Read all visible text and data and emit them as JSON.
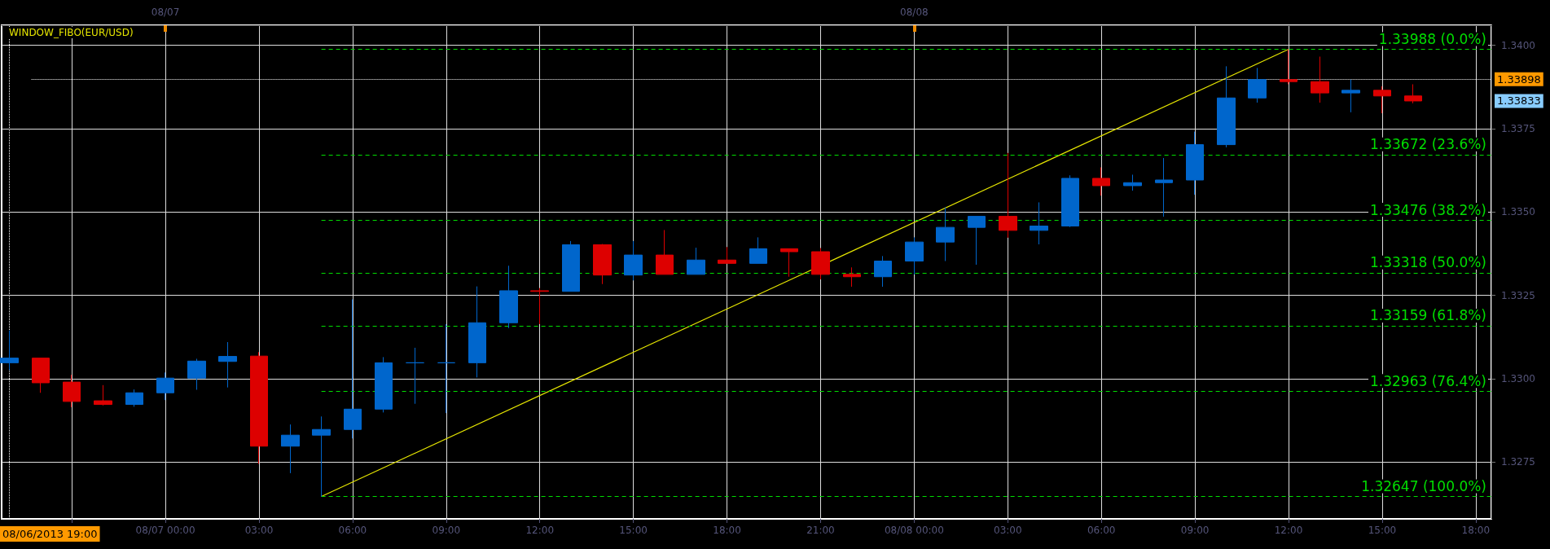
{
  "chart_data": {
    "type": "candlestick",
    "title": "WINDOW_FIBO(EUR/USD)",
    "x": [
      "2013-08-06T19:00",
      "2013-08-06T20:00",
      "2013-08-06T21:00",
      "2013-08-06T22:00",
      "2013-08-06T23:00",
      "2013-08-07T00:00",
      "2013-08-07T01:00",
      "2013-08-07T02:00",
      "2013-08-07T03:00",
      "2013-08-07T04:00",
      "2013-08-07T05:00",
      "2013-08-07T06:00",
      "2013-08-07T07:00",
      "2013-08-07T08:00",
      "2013-08-07T09:00",
      "2013-08-07T10:00",
      "2013-08-07T11:00",
      "2013-08-07T12:00",
      "2013-08-07T13:00",
      "2013-08-07T14:00",
      "2013-08-07T15:00",
      "2013-08-07T16:00",
      "2013-08-07T17:00",
      "2013-08-07T18:00",
      "2013-08-07T19:00",
      "2013-08-07T20:00",
      "2013-08-07T21:00",
      "2013-08-07T22:00",
      "2013-08-07T23:00",
      "2013-08-08T00:00",
      "2013-08-08T01:00",
      "2013-08-08T02:00",
      "2013-08-08T03:00",
      "2013-08-08T04:00",
      "2013-08-08T05:00",
      "2013-08-08T06:00",
      "2013-08-08T07:00",
      "2013-08-08T08:00",
      "2013-08-08T09:00",
      "2013-08-08T10:00",
      "2013-08-08T11:00",
      "2013-08-08T12:00",
      "2013-08-08T13:00",
      "2013-08-08T14:00",
      "2013-08-08T15:00",
      "2013-08-08T16:00"
    ],
    "ohlc": [
      [
        1.33048,
        1.33145,
        1.33026,
        1.33062
      ],
      [
        1.33062,
        1.33062,
        1.32958,
        1.32988
      ],
      [
        1.3299,
        1.33012,
        1.32915,
        1.32932
      ],
      [
        1.32934,
        1.32981,
        1.3292,
        1.32923
      ],
      [
        1.32923,
        1.32968,
        1.32916,
        1.32958
      ],
      [
        1.32958,
        1.33019,
        1.32936,
        1.33002
      ],
      [
        1.33002,
        1.3306,
        1.32967,
        1.33053
      ],
      [
        1.33052,
        1.3311,
        1.32974,
        1.33067
      ],
      [
        1.33068,
        1.3308,
        1.32745,
        1.32798
      ],
      [
        1.32798,
        1.32863,
        1.32717,
        1.32831
      ],
      [
        1.32831,
        1.32887,
        1.32647,
        1.32848
      ],
      [
        1.32848,
        1.33238,
        1.32821,
        1.32909
      ],
      [
        1.32909,
        1.33065,
        1.32899,
        1.33048
      ],
      [
        1.33048,
        1.33093,
        1.32925,
        1.33048
      ],
      [
        1.33048,
        1.33164,
        1.32897,
        1.33048
      ],
      [
        1.33048,
        1.33277,
        1.33004,
        1.33168
      ],
      [
        1.33168,
        1.33339,
        1.33152,
        1.33264
      ],
      [
        1.33264,
        1.33272,
        1.33164,
        1.33262
      ],
      [
        1.33262,
        1.33413,
        1.33262,
        1.33402
      ],
      [
        1.33402,
        1.33404,
        1.33284,
        1.33311
      ],
      [
        1.33311,
        1.33413,
        1.33295,
        1.33371
      ],
      [
        1.33371,
        1.33446,
        1.33313,
        1.33313
      ],
      [
        1.33313,
        1.33393,
        1.33313,
        1.33356
      ],
      [
        1.33356,
        1.33395,
        1.33346,
        1.33346
      ],
      [
        1.33346,
        1.33424,
        1.33346,
        1.3339
      ],
      [
        1.3339,
        1.3339,
        1.33306,
        1.33381
      ],
      [
        1.33381,
        1.33392,
        1.33298,
        1.33313
      ],
      [
        1.33313,
        1.33334,
        1.33276,
        1.33306
      ],
      [
        1.33306,
        1.33368,
        1.33276,
        1.33353
      ],
      [
        1.33353,
        1.33424,
        1.33313,
        1.3341
      ],
      [
        1.3341,
        1.33514,
        1.33353,
        1.33454
      ],
      [
        1.33454,
        1.33487,
        1.33342,
        1.33487
      ],
      [
        1.33487,
        1.33677,
        1.33423,
        1.33445
      ],
      [
        1.33445,
        1.33529,
        1.33403,
        1.33458
      ],
      [
        1.33458,
        1.3361,
        1.33455,
        1.33601
      ],
      [
        1.33601,
        1.33634,
        1.33549,
        1.33579
      ],
      [
        1.33579,
        1.33612,
        1.33564,
        1.33588
      ],
      [
        1.33588,
        1.33662,
        1.33486,
        1.33596
      ],
      [
        1.33596,
        1.33741,
        1.33552,
        1.33702
      ],
      [
        1.33702,
        1.33937,
        1.33694,
        1.33842
      ],
      [
        1.33842,
        1.33932,
        1.33828,
        1.33897
      ],
      [
        1.33897,
        1.33988,
        1.33883,
        1.33891
      ],
      [
        1.33891,
        1.33966,
        1.33828,
        1.33857
      ],
      [
        1.33857,
        1.33897,
        1.33799,
        1.33865
      ],
      [
        1.33865,
        1.33877,
        1.33796,
        1.33848
      ],
      [
        1.33848,
        1.33883,
        1.33826,
        1.33833
      ]
    ],
    "colors": [
      "#0066cc",
      "#dd0000",
      "#dd0000",
      "#dd0000",
      "#0066cc",
      "#0066cc",
      "#0066cc",
      "#0066cc",
      "#dd0000",
      "#0066cc",
      "#0066cc",
      "#0066cc",
      "#0066cc",
      "#0066cc",
      "#0066cc",
      "#0066cc",
      "#0066cc",
      "#dd0000",
      "#0066cc",
      "#dd0000",
      "#0066cc",
      "#dd0000",
      "#0066cc",
      "#dd0000",
      "#0066cc",
      "#dd0000",
      "#dd0000",
      "#dd0000",
      "#0066cc",
      "#0066cc",
      "#0066cc",
      "#0066cc",
      "#dd0000",
      "#0066cc",
      "#0066cc",
      "#dd0000",
      "#0066cc",
      "#0066cc",
      "#0066cc",
      "#0066cc",
      "#0066cc",
      "#dd0000",
      "#dd0000",
      "#0066cc",
      "#dd0000",
      "#dd0000"
    ],
    "series": [
      {
        "type": "line",
        "color": "#e6e600",
        "x": [
          "2013-08-07T05:00",
          "2013-08-08T12:00"
        ],
        "values": [
          1.32647,
          1.33988
        ]
      }
    ],
    "xlim": [
      "2013-08-06T18:45",
      "2013-08-08T18:30"
    ],
    "xticks": [
      {
        "value": "2013-08-06T21:00",
        "label": null
      },
      {
        "value": "2013-08-07T00:00",
        "label": "08/07 00:00"
      },
      {
        "value": "2013-08-07T03:00",
        "label": "03:00"
      },
      {
        "value": "2013-08-07T06:00",
        "label": "06:00"
      },
      {
        "value": "2013-08-07T09:00",
        "label": "09:00"
      },
      {
        "value": "2013-08-07T12:00",
        "label": "12:00"
      },
      {
        "value": "2013-08-07T15:00",
        "label": "15:00"
      },
      {
        "value": "2013-08-07T18:00",
        "label": "18:00"
      },
      {
        "value": "2013-08-07T21:00",
        "label": "21:00"
      },
      {
        "value": "2013-08-08T00:00",
        "label": "08/08 00:00"
      },
      {
        "value": "2013-08-08T03:00",
        "label": "03:00"
      },
      {
        "value": "2013-08-08T06:00",
        "label": "06:00"
      },
      {
        "value": "2013-08-08T09:00",
        "label": "09:00"
      },
      {
        "value": "2013-08-08T12:00",
        "label": "12:00"
      },
      {
        "value": "2013-08-08T15:00",
        "label": "15:00"
      },
      {
        "value": "2013-08-08T18:00",
        "label": "18:00"
      }
    ],
    "x2lim": [
      "2013-08-06T18:45",
      "2013-08-08T18:30"
    ],
    "x2ticks": [
      {
        "value": "2013-08-07T00:00",
        "label": "08/07"
      },
      {
        "value": "2013-08-08T00:00",
        "label": "08/08"
      }
    ],
    "ylim": [
      1.3258,
      1.3406
    ],
    "yticks": [
      {
        "value": 1.3275,
        "label": "1.3275"
      },
      {
        "value": 1.33,
        "label": "1.3300"
      },
      {
        "value": 1.3325,
        "label": "1.3325"
      },
      {
        "value": 1.335,
        "label": "1.3350"
      },
      {
        "value": 1.3375,
        "label": "1.3375"
      },
      {
        "value": 1.34,
        "label": "1.3400"
      }
    ],
    "grid": true,
    "ref_lines": [
      {
        "axis": "y",
        "value": 1.33988,
        "label": "1.33988 (0.0%)",
        "color": "#00dd00",
        "line_style": "dashed"
      },
      {
        "axis": "y",
        "value": 1.33672,
        "label": "1.33672 (23.6%)",
        "color": "#00dd00",
        "line_style": "dashed"
      },
      {
        "axis": "y",
        "value": 1.33476,
        "label": "1.33476 (38.2%)",
        "color": "#00dd00",
        "line_style": "dashed"
      },
      {
        "axis": "y",
        "value": 1.33318,
        "label": "1.33318 (50.0%)",
        "color": "#00dd00",
        "line_style": "dashed"
      },
      {
        "axis": "y",
        "value": 1.33159,
        "label": "1.33159 (61.8%)",
        "color": "#00dd00",
        "line_style": "dashed"
      },
      {
        "axis": "y",
        "value": 1.32963,
        "label": "1.32963 (76.4%)",
        "color": "#00dd00",
        "line_style": "dashed"
      },
      {
        "axis": "y",
        "value": 1.32647,
        "label": "1.32647 (100.0%)",
        "color": "#00dd00",
        "line_style": "dashed"
      },
      {
        "axis": "y",
        "value": 1.33898,
        "label": "1.33898",
        "color": "#ffffff",
        "line_style": "dotted"
      },
      {
        "axis": "x",
        "value": "2013-08-06T19:00",
        "label": "08/06/2013 19:00",
        "color": "#ffffff",
        "line_style": "dotted"
      }
    ],
    "annotations": [
      "1.33833"
    ]
  }
}
